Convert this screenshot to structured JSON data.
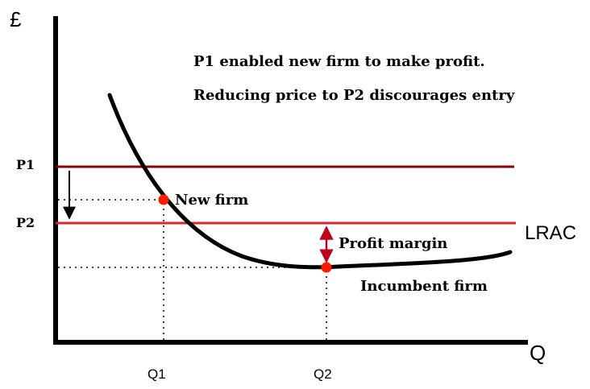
{
  "axes": {
    "y_label": "£",
    "x_label": "Q"
  },
  "annotation": {
    "line1": "P1 enabled new firm to make profit.",
    "line2": "Reducing price to P2 discourages entry"
  },
  "prices": {
    "p1_label": "P1",
    "p2_label": "P2"
  },
  "quantities": {
    "q1_label": "Q1",
    "q2_label": "Q2"
  },
  "curve": {
    "label": "LRAC"
  },
  "points": {
    "new_firm_label": "New firm",
    "incumbent_label": "Incumbent firm"
  },
  "margin": {
    "label": "Profit margin"
  },
  "colors": {
    "axis": "#000000",
    "p1_line": "#8b0000",
    "p2_line": "#e0242b",
    "point": "#ff1a00",
    "margin_arrow": "#c0001a"
  }
}
